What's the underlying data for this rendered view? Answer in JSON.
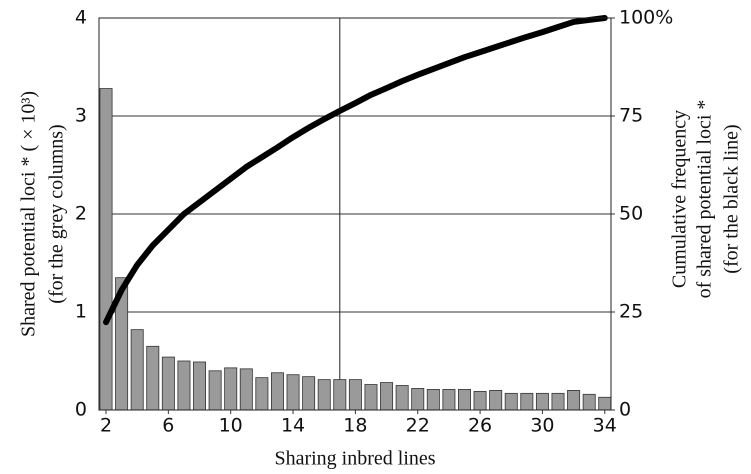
{
  "chart_data": {
    "type": "bar+line",
    "x": [
      2,
      3,
      4,
      5,
      6,
      7,
      8,
      9,
      10,
      11,
      12,
      13,
      14,
      15,
      16,
      17,
      18,
      19,
      20,
      21,
      22,
      23,
      24,
      25,
      26,
      27,
      28,
      29,
      30,
      31,
      32,
      33,
      34
    ],
    "xlim": [
      1.55,
      34.4
    ],
    "xticks": [
      2,
      6,
      10,
      14,
      18,
      22,
      26,
      30,
      34
    ],
    "xlabel": "Sharing inbred lines",
    "ylabel": [
      "Shared potential loci * ( × 10³)",
      "(for the grey columns)"
    ],
    "y2label": [
      "Cumulative frequency",
      "of shared potential loci *",
      "(for the black line)"
    ],
    "ylim": [
      0,
      4
    ],
    "yticks": [
      0,
      1,
      2,
      3,
      4
    ],
    "y2lim": [
      0,
      100
    ],
    "y2ticks": [
      0,
      25,
      50,
      75,
      {
        "value": 100,
        "label": "100%"
      }
    ],
    "grid": true,
    "vline": 17,
    "series": [
      {
        "type": "bar",
        "color": "#9a9a9a",
        "values": [
          3.28,
          1.35,
          0.82,
          0.65,
          0.54,
          0.5,
          0.49,
          0.4,
          0.43,
          0.42,
          0.33,
          0.38,
          0.36,
          0.34,
          0.31,
          0.31,
          0.31,
          0.26,
          0.28,
          0.25,
          0.22,
          0.21,
          0.21,
          0.21,
          0.19,
          0.2,
          0.17,
          0.17,
          0.17,
          0.17,
          0.2,
          0.16,
          0.13
        ]
      },
      {
        "type": "line",
        "color": "#000000",
        "axis": "y2",
        "values": [
          22.4,
          30.6,
          37,
          42,
          46,
          50,
          53,
          56,
          59,
          62,
          64.5,
          67,
          69.6,
          72,
          74.2,
          76.3,
          78.3,
          80.4,
          82.1,
          83.9,
          85.5,
          87,
          88.5,
          90,
          91.3,
          92.6,
          93.9,
          95.2,
          96.4,
          97.7,
          99,
          99.5,
          100
        ]
      }
    ]
  }
}
